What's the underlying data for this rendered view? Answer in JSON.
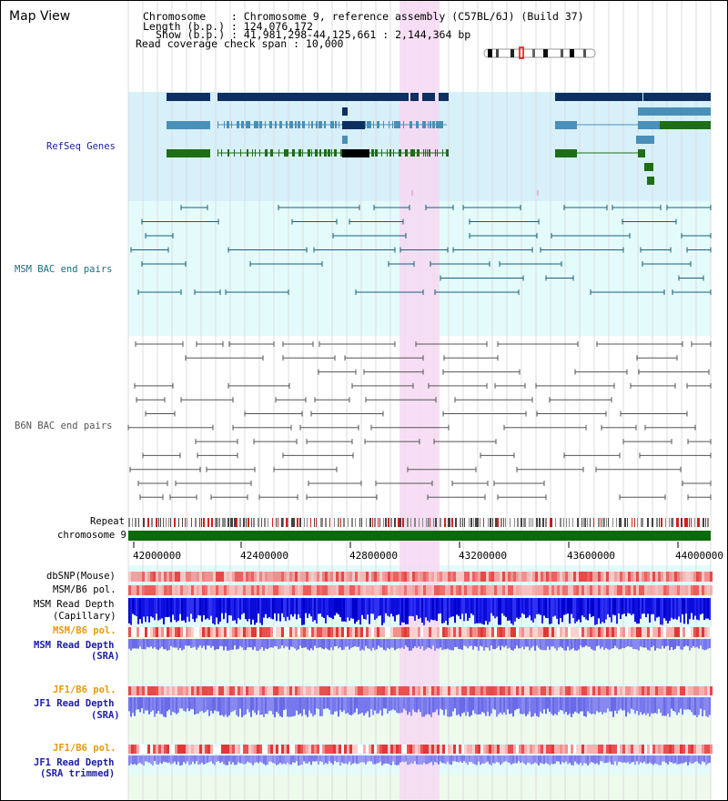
{
  "title": "Map View",
  "header": {
    "chromosome_line": "Chromosome    : Chromosome 9, reference assembly (C57BL/6J) (Build 37)",
    "length_line": "Length (b.p.) : 124,076,172",
    "show_line": "Show (b.p.) : 41,981,298-44,125,661 : 2,144,364 bp",
    "span_line": "Read coverage check span : 10,000"
  },
  "tracks": {
    "refseq_genes": "RefSeq Genes",
    "msm_bac": "MSM BAC end pairs",
    "b6n_bac": "B6N BAC end pairs",
    "repeat": "Repeat",
    "chromosome": "chromosome 9",
    "dbsnp": "dbSNP(Mouse)",
    "msm_b6_pol_1": "MSM/B6 pol.",
    "msm_read_depth_cap_1": "MSM Read Depth",
    "msm_read_depth_cap_2": "(Capillary)",
    "msm_b6_pol_2": "MSM/B6 pol.",
    "msm_read_depth_sra_1": "MSM Read Depth",
    "msm_read_depth_sra_2": "(SRA)",
    "jf1_b6_pol_1": "JF1/B6 pol.",
    "jf1_read_depth_sra_1": "JF1 Read Depth",
    "jf1_read_depth_sra_2": "(SRA)",
    "jf1_b6_pol_2": "JF1/B6 pol.",
    "jf1_read_depth_trim_1": "JF1 Read Depth",
    "jf1_read_depth_trim_2": "(SRA trimmed)"
  },
  "axis": {
    "ticks": [
      "42000000",
      "42400000",
      "42800000",
      "43200000",
      "43600000",
      "44000000"
    ]
  },
  "colors": {
    "gene_navy": "#0d2f62",
    "gene_teal": "#4a8fb8",
    "gene_green": "#1e6e17",
    "refseq_bg": "#d7f0fa",
    "msm_bg": "#e3fbfb",
    "highlight": "#f6d8f2",
    "msm_pair": "#1a5f7a",
    "b6n_pair": "#555555",
    "chrom_bar": "#0b6a0b",
    "label_blue": "#1c1ca8",
    "label_teal": "#1d6e82",
    "label_orange": "#e79a10"
  }
}
